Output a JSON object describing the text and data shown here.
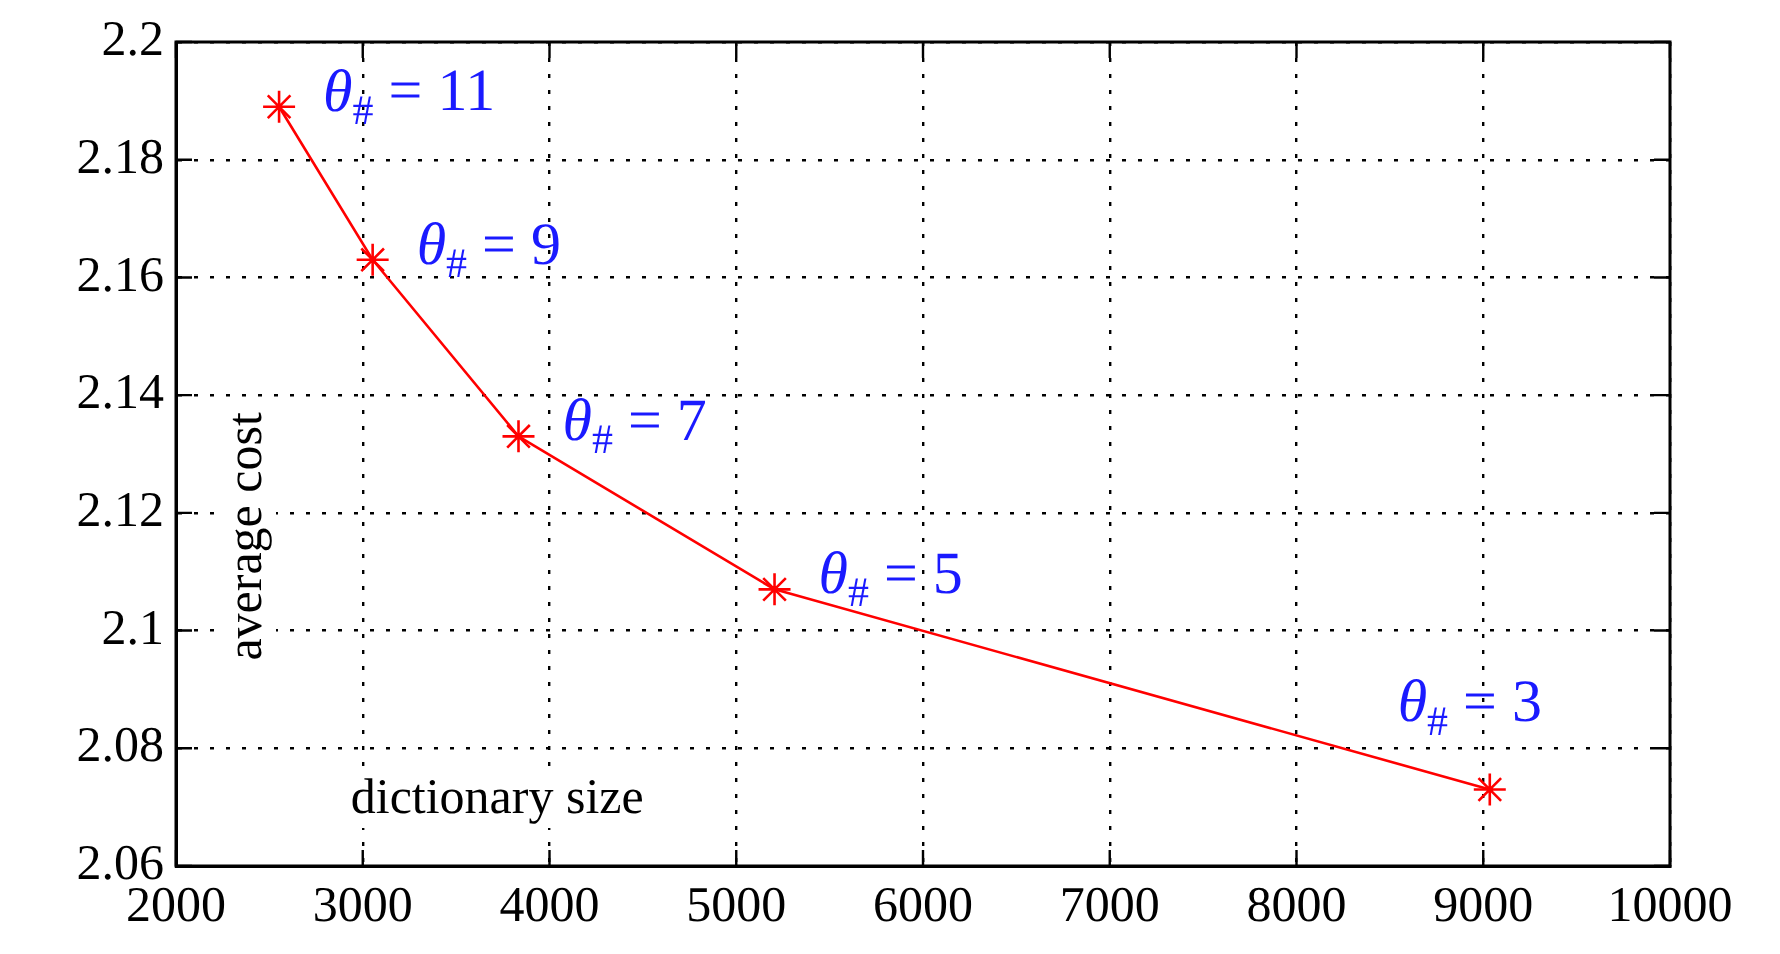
{
  "chart_data": {
    "type": "line",
    "xlabel": "dictionary size",
    "ylabel": "average cost",
    "x": [
      2552,
      3053,
      3834,
      5205,
      9035
    ],
    "series": [
      {
        "color": "#ff0000",
        "values": [
          2.189,
          2.163,
          2.133,
          2.107,
          2.073
        ]
      }
    ],
    "xlim": [
      2000,
      10000
    ],
    "xticks": [
      2000,
      3000,
      4000,
      5000,
      6000,
      7000,
      8000,
      9000,
      10000
    ],
    "ylim": [
      2.06,
      2.2
    ],
    "yticks": [
      2.06,
      2.08,
      2.1,
      2.12,
      2.14,
      2.16,
      2.18,
      2.2
    ],
    "grid": true,
    "legend": false,
    "marker": "cross",
    "line_style": "solid",
    "annotations": [
      {
        "text": "θ$_{#}$ = 11",
        "x": 2552,
        "y": 2.189
      },
      {
        "text": "θ$_{#}$ = 9",
        "x": 3053,
        "y": 2.163
      },
      {
        "text": "θ$_{#}$ = 7",
        "x": 3834,
        "y": 2.133
      },
      {
        "text": "θ$_{#}$ = 5",
        "x": 5205,
        "y": 2.107
      },
      {
        "text": "θ$_{#}$ = 3",
        "x": 9035,
        "y": 2.073
      }
    ]
  }
}
